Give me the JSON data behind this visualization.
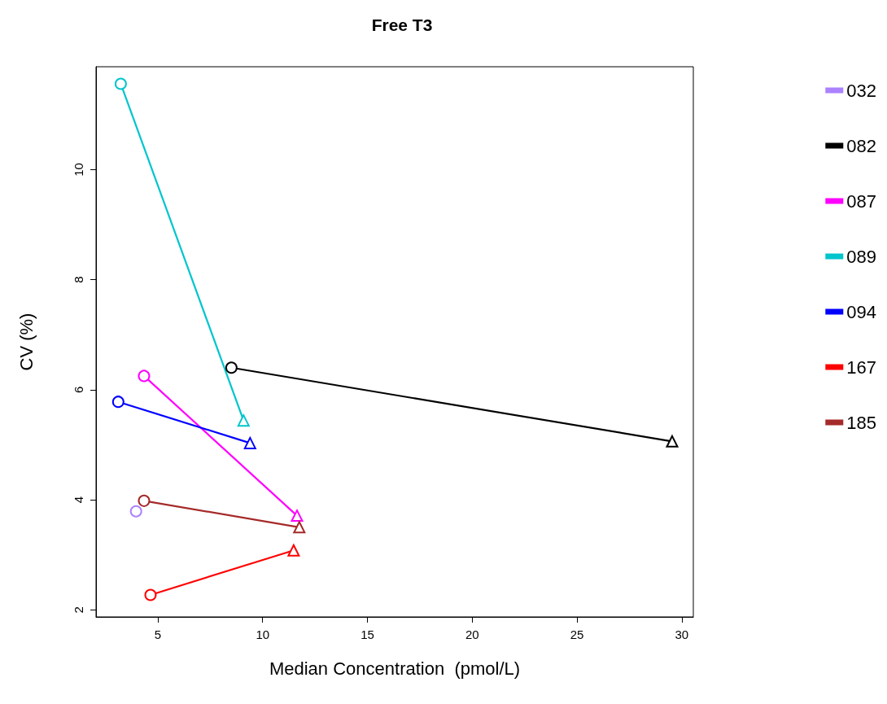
{
  "chart_data": {
    "type": "line",
    "title": "Free T3",
    "xlabel": "Median Concentration  (pmol/L)",
    "ylabel": "CV (%)",
    "xlim": [
      2.05,
      30.55
    ],
    "xticks": [
      5,
      10,
      15,
      20,
      25,
      30
    ],
    "ylim": [
      1.87,
      11.87
    ],
    "yticks": [
      2,
      4,
      6,
      8,
      10
    ],
    "grid": false,
    "legend": "right",
    "marker": [
      "circle",
      "triangle"
    ],
    "line_style": "solid",
    "series": [
      {
        "name": "032",
        "color": "#ab82ff",
        "x": [
          3.96
        ],
        "values": [
          3.79
        ]
      },
      {
        "name": "082",
        "color": "#000000",
        "x": [
          8.51,
          29.54
        ],
        "values": [
          6.4,
          5.06
        ]
      },
      {
        "name": "087",
        "color": "#ff00ff",
        "x": [
          4.34,
          11.64
        ],
        "values": [
          6.25,
          3.71
        ]
      },
      {
        "name": "089",
        "color": "#00c5cd",
        "x": [
          3.23,
          9.09
        ],
        "values": [
          11.56,
          5.44
        ]
      },
      {
        "name": "094",
        "color": "#0000ff",
        "x": [
          3.11,
          9.4
        ],
        "values": [
          5.78,
          5.03
        ]
      },
      {
        "name": "167",
        "color": "#ff0000",
        "x": [
          4.65,
          11.48
        ],
        "values": [
          2.27,
          3.08
        ]
      },
      {
        "name": "185",
        "color": "#a52a2a",
        "x": [
          4.34,
          11.75
        ],
        "values": [
          3.98,
          3.5
        ]
      }
    ]
  }
}
